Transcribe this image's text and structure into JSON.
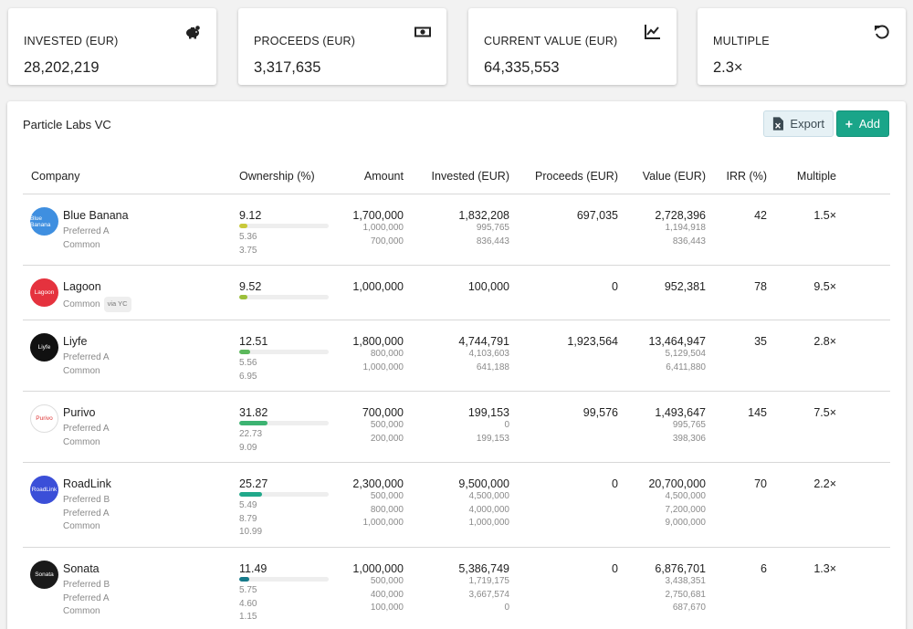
{
  "stats": [
    {
      "label": "INVESTED (EUR)",
      "value": "28,202,219",
      "icon": "piggy-bank-icon"
    },
    {
      "label": "PROCEEDS (EUR)",
      "value": "3,317,635",
      "icon": "money-bill-icon"
    },
    {
      "label": "CURRENT VALUE (EUR)",
      "value": "64,335,553",
      "icon": "chart-line-icon"
    },
    {
      "label": "MULTIPLE",
      "value": "2.3×",
      "icon": "undo-icon"
    }
  ],
  "portfolio": {
    "title": "Particle Labs VC",
    "export_label": "Export",
    "add_label": "Add"
  },
  "columns": {
    "company": "Company",
    "ownership": "Ownership (%)",
    "amount": "Amount",
    "invested": "Invested (EUR)",
    "proceeds": "Proceeds (EUR)",
    "value": "Value (EUR)",
    "irr": "IRR (%)",
    "multiple": "Multiple"
  },
  "rows": [
    {
      "company": "Blue Banana",
      "logo_text": "Blue Banana",
      "logo_color": "#3f8fe0",
      "ownership": "9.12",
      "bar_pct": 9.12,
      "bar_color": "#c9c93a",
      "amount": "1,700,000",
      "invested": "1,832,208",
      "proceeds": "697,035",
      "value": "2,728,396",
      "irr": "42",
      "multiple": "1.5×",
      "shares": [
        {
          "class": "Preferred A",
          "own": "5.36",
          "amount": "1,000,000",
          "invested": "995,765",
          "value": "1,194,918"
        },
        {
          "class": "Common",
          "own": "3.75",
          "amount": "700,000",
          "invested": "836,443",
          "value": "836,443"
        }
      ]
    },
    {
      "company": "Lagoon",
      "logo_text": "Lagoon",
      "logo_color": "#e5323e",
      "ownership": "9.52",
      "bar_pct": 9.52,
      "bar_color": "#9bbf3a",
      "amount": "1,000,000",
      "invested": "100,000",
      "proceeds": "0",
      "value": "952,381",
      "irr": "78",
      "multiple": "9.5×",
      "shares": [
        {
          "class": "Common",
          "tag": "via YC",
          "own": "",
          "amount": "",
          "invested": "",
          "value": ""
        }
      ]
    },
    {
      "company": "Liyfe",
      "logo_text": "Liyfe",
      "logo_color": "#111111",
      "ownership": "12.51",
      "bar_pct": 12.51,
      "bar_color": "#5cb85c",
      "amount": "1,800,000",
      "invested": "4,744,791",
      "proceeds": "1,923,564",
      "value": "13,464,947",
      "irr": "35",
      "multiple": "2.8×",
      "shares": [
        {
          "class": "Preferred A",
          "own": "5.56",
          "amount": "800,000",
          "invested": "4,103,603",
          "value": "5,129,504"
        },
        {
          "class": "Common",
          "own": "6.95",
          "amount": "1,000,000",
          "invested": "641,188",
          "value": "6,411,880"
        }
      ]
    },
    {
      "company": "Purivo",
      "logo_text": "Purivo",
      "logo_color": "#ffffff",
      "ownership": "31.82",
      "bar_pct": 31.82,
      "bar_color": "#3cb371",
      "amount": "700,000",
      "invested": "199,153",
      "proceeds": "99,576",
      "value": "1,493,647",
      "irr": "145",
      "multiple": "7.5×",
      "shares": [
        {
          "class": "Preferred A",
          "own": "22.73",
          "amount": "500,000",
          "invested": "0",
          "value": "995,765"
        },
        {
          "class": "Common",
          "own": "9.09",
          "amount": "200,000",
          "invested": "199,153",
          "value": "398,306"
        }
      ]
    },
    {
      "company": "RoadLink",
      "logo_text": "RoadLink",
      "logo_color": "#3b4fd8",
      "ownership": "25.27",
      "bar_pct": 25.27,
      "bar_color": "#20a88a",
      "amount": "2,300,000",
      "invested": "9,500,000",
      "proceeds": "0",
      "value": "20,700,000",
      "irr": "70",
      "multiple": "2.2×",
      "shares": [
        {
          "class": "Preferred B",
          "own": "5.49",
          "amount": "500,000",
          "invested": "4,500,000",
          "value": "4,500,000"
        },
        {
          "class": "Preferred A",
          "own": "8.79",
          "amount": "800,000",
          "invested": "4,000,000",
          "value": "7,200,000"
        },
        {
          "class": "Common",
          "own": "10.99",
          "amount": "1,000,000",
          "invested": "1,000,000",
          "value": "9,000,000"
        }
      ]
    },
    {
      "company": "Sonata",
      "logo_text": "Sonata",
      "logo_color": "#1a1a1a",
      "ownership": "11.49",
      "bar_pct": 11.49,
      "bar_color": "#177a8a",
      "amount": "1,000,000",
      "invested": "5,386,749",
      "proceeds": "0",
      "value": "6,876,701",
      "irr": "6",
      "multiple": "1.3×",
      "shares": [
        {
          "class": "Preferred B",
          "own": "5.75",
          "amount": "500,000",
          "invested": "1,719,175",
          "value": "3,438,351"
        },
        {
          "class": "Preferred A",
          "own": "4.60",
          "amount": "400,000",
          "invested": "3,667,574",
          "value": "2,750,681"
        },
        {
          "class": "Common",
          "own": "1.15",
          "amount": "100,000",
          "invested": "0",
          "value": "687,670"
        }
      ]
    }
  ]
}
